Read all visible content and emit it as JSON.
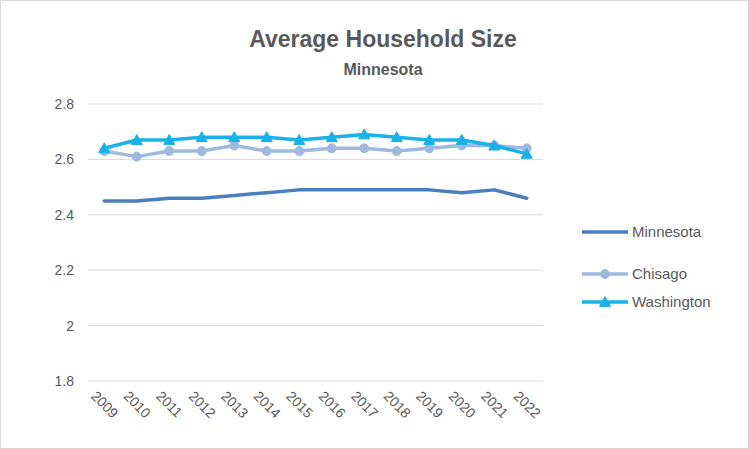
{
  "chart_data": {
    "type": "line",
    "title": "Average Household Size",
    "subtitle": "Minnesota",
    "categories": [
      "2009",
      "2010",
      "2011",
      "2012",
      "2013",
      "2014",
      "2015",
      "2016",
      "2017",
      "2018",
      "2019",
      "2020",
      "2021",
      "2022"
    ],
    "series": [
      {
        "name": "Minnesota",
        "color": "#4a7ebf",
        "marker": "none",
        "values": [
          2.45,
          2.45,
          2.46,
          2.46,
          2.47,
          2.48,
          2.49,
          2.49,
          2.49,
          2.49,
          2.49,
          2.48,
          2.49,
          2.46
        ]
      },
      {
        "name": "Chisago",
        "color": "#9fbadf",
        "marker": "circle",
        "values": [
          2.63,
          2.61,
          2.63,
          2.63,
          2.65,
          2.63,
          2.63,
          2.64,
          2.64,
          2.63,
          2.64,
          2.65,
          2.65,
          2.64
        ]
      },
      {
        "name": "Washington",
        "color": "#19b1ea",
        "marker": "triangle",
        "values": [
          2.64,
          2.67,
          2.67,
          2.68,
          2.68,
          2.68,
          2.67,
          2.68,
          2.69,
          2.68,
          2.67,
          2.67,
          2.65,
          2.62
        ]
      }
    ],
    "ylim": [
      1.8,
      2.8
    ],
    "yticks": [
      1.8,
      2,
      2.2,
      2.4,
      2.6,
      2.8
    ],
    "grid": true,
    "legend": "right"
  }
}
